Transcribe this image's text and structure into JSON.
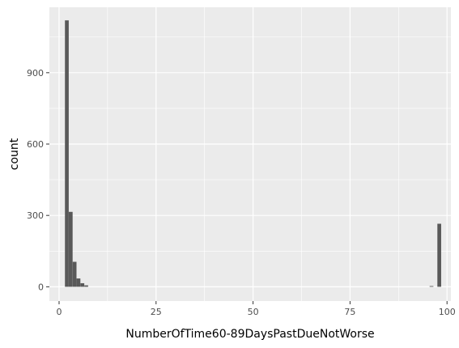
{
  "chart_data": {
    "type": "bar",
    "subtype": "histogram",
    "title": "",
    "xlabel": "NumberOfTime60-89DaysPastDueNotWorse",
    "ylabel": "count",
    "xlim": [
      -2.5,
      101
    ],
    "ylim": [
      -60,
      1175
    ],
    "x_ticks": [
      0,
      25,
      50,
      75,
      100
    ],
    "y_ticks": [
      0,
      300,
      600,
      900
    ],
    "bin_width": 0.98,
    "bins": [
      {
        "x": 2,
        "count": 1120
      },
      {
        "x": 3,
        "count": 315
      },
      {
        "x": 4,
        "count": 105
      },
      {
        "x": 5,
        "count": 35
      },
      {
        "x": 6,
        "count": 15
      },
      {
        "x": 7,
        "count": 6
      },
      {
        "x": 96,
        "count": 3
      },
      {
        "x": 98,
        "count": 265
      }
    ],
    "colors": {
      "panel_background": "#ebebeb",
      "major_grid": "#ffffff",
      "minor_grid": "#f5f5f5",
      "bar_fill": "#595959",
      "tick_color": "#333333",
      "tick_label": "#4d4d4d"
    }
  }
}
